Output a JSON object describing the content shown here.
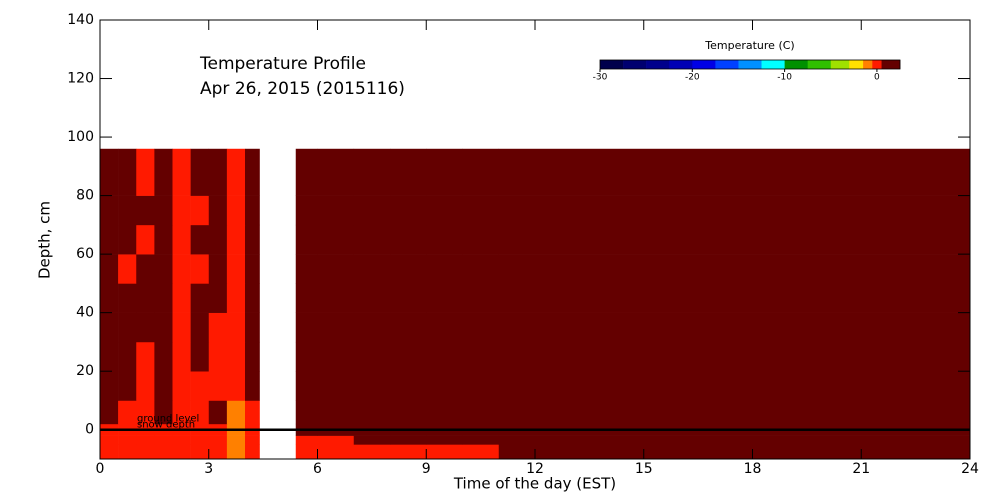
{
  "chart_data": {
    "type": "heatmap",
    "title": "Temperature Profile",
    "subtitle": "Apr 26, 2015 (2015116)",
    "xlabel": "Time of the day (EST)",
    "ylabel": "Depth, cm",
    "xlim": [
      0,
      24
    ],
    "xticks": [
      0,
      3,
      6,
      9,
      12,
      15,
      18,
      21,
      24
    ],
    "ylim": [
      -10,
      140
    ],
    "yticks": [
      0,
      20,
      40,
      60,
      80,
      100,
      120,
      140
    ],
    "x": [
      0,
      0.5,
      1,
      1.5,
      2,
      2.5,
      3,
      3.5,
      4,
      4.4,
      5.4,
      6,
      7,
      8,
      9,
      10,
      11,
      24
    ],
    "y": [
      -10,
      -5,
      -2,
      2,
      10,
      20,
      30,
      40,
      50,
      60,
      70,
      80,
      96
    ],
    "values": [
      [
        0,
        0,
        0,
        0,
        0,
        0,
        0,
        -1,
        0,
        null,
        0,
        0,
        0,
        0,
        0,
        0,
        1
      ],
      [
        0,
        0,
        0,
        0,
        0,
        0,
        0,
        -1,
        0,
        null,
        0,
        0,
        1,
        1,
        1,
        1,
        1
      ],
      [
        0,
        0,
        0,
        0,
        0,
        0,
        0,
        -1,
        0,
        null,
        1,
        1,
        1,
        1,
        1,
        1,
        1
      ],
      [
        1,
        0,
        0,
        1,
        0,
        0,
        1,
        -1,
        0,
        null,
        1,
        1,
        1,
        1,
        1,
        1,
        1
      ],
      [
        1,
        1,
        0,
        1,
        0,
        0,
        0,
        0,
        1,
        null,
        1,
        1,
        1,
        1,
        1,
        1,
        1
      ],
      [
        1,
        1,
        0,
        1,
        0,
        1,
        0,
        0,
        1,
        null,
        1,
        1,
        1,
        1,
        1,
        1,
        1
      ],
      [
        1,
        1,
        1,
        1,
        0,
        1,
        0,
        0,
        1,
        null,
        1,
        1,
        1,
        1,
        1,
        1,
        1
      ],
      [
        1,
        1,
        1,
        1,
        0,
        1,
        1,
        0,
        1,
        null,
        1,
        1,
        1,
        1,
        1,
        1,
        1
      ],
      [
        1,
        0,
        1,
        1,
        0,
        0,
        1,
        0,
        1,
        null,
        1,
        1,
        1,
        1,
        1,
        1,
        1
      ],
      [
        1,
        1,
        0,
        1,
        0,
        1,
        1,
        0,
        1,
        null,
        1,
        1,
        1,
        1,
        1,
        1,
        1
      ],
      [
        1,
        1,
        1,
        1,
        0,
        0,
        1,
        0,
        1,
        null,
        1,
        1,
        1,
        1,
        1,
        1,
        1
      ],
      [
        1,
        1,
        0,
        1,
        0,
        1,
        1,
        0,
        1,
        null,
        1,
        1,
        1,
        1,
        1,
        1,
        1
      ]
    ],
    "ground_level": 0,
    "annotations": [
      "ground level",
      "snow depth"
    ],
    "colorbar": {
      "label": "Temperature (C)",
      "bounds": [
        -30,
        -27.5,
        -25,
        -22.5,
        -20,
        -17.5,
        -15,
        -12.5,
        -10,
        -7.5,
        -5,
        -3,
        -1.5,
        -0.5,
        0.5,
        2.5
      ],
      "colors": [
        "#00004c",
        "#000070",
        "#00008c",
        "#0000b4",
        "#0000e6",
        "#0040ff",
        "#0090ff",
        "#00ffff",
        "#009000",
        "#30c000",
        "#a0e000",
        "#ffe000",
        "#ff8000",
        "#ff1a00",
        "#640000"
      ],
      "ticks": [
        -30,
        -20,
        -10,
        0
      ]
    }
  }
}
